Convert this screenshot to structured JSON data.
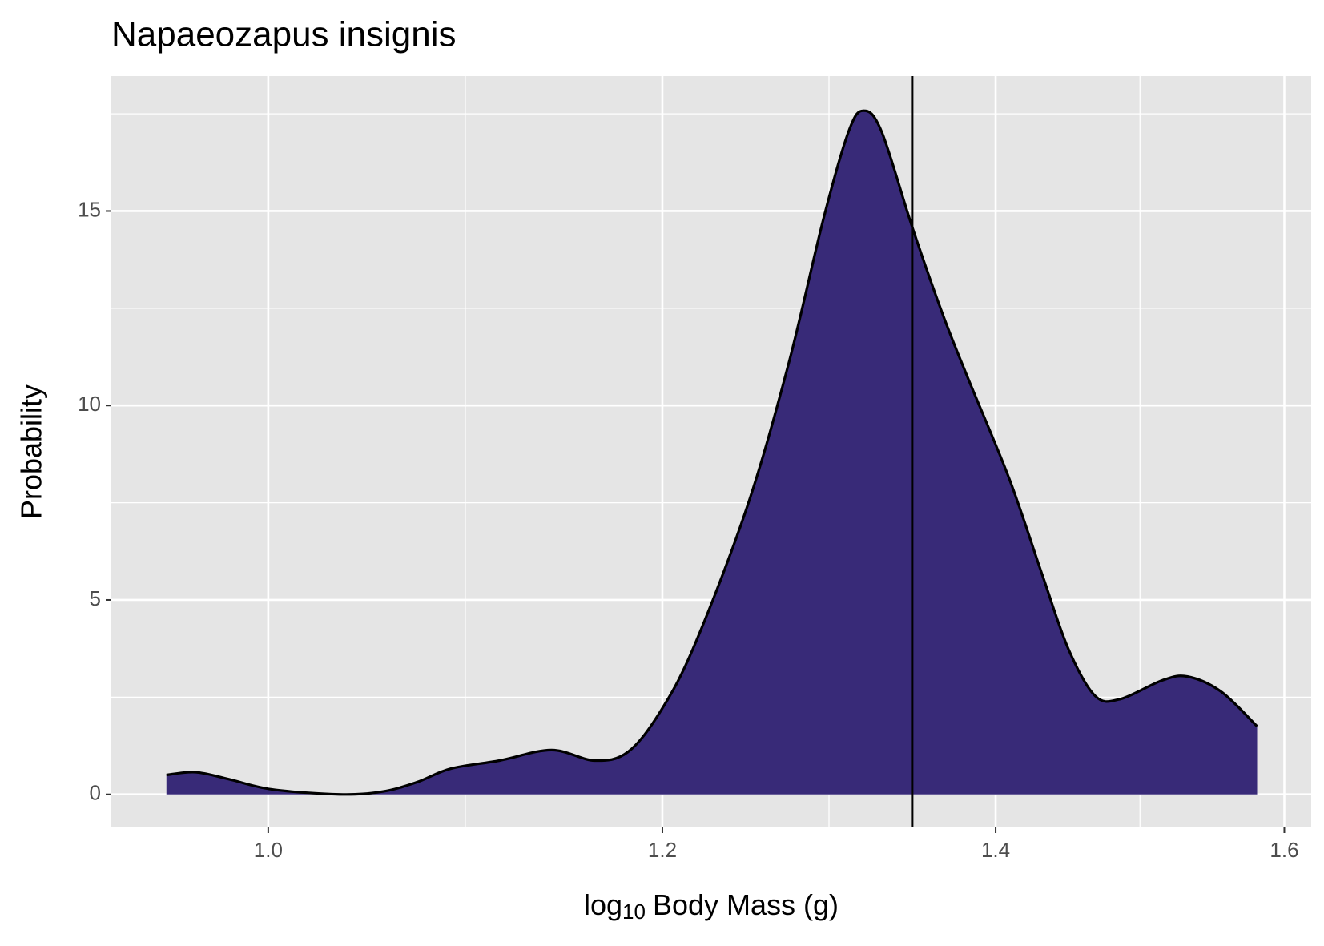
{
  "chart_data": {
    "type": "density",
    "title": "Napaeozapus insignis",
    "x_label": [
      "log",
      "10",
      "Body Mass (g)"
    ],
    "y_label": "Probability",
    "x": [
      0.954,
      0.967,
      0.982,
      1.0016,
      1.0335,
      1.054,
      1.071,
      1.088,
      1.113,
      1.14,
      1.163,
      1.181,
      1.199,
      1.218,
      1.248,
      1.272,
      1.293,
      1.308,
      1.317,
      1.328,
      1.347,
      1.366,
      1.382,
      1.409,
      1.431,
      1.448,
      1.466,
      1.483,
      1.512,
      1.53,
      1.554,
      1.58
    ],
    "values": [
      0.5,
      0.57,
      0.39,
      0.13,
      0.0,
      0.07,
      0.31,
      0.66,
      0.87,
      1.14,
      0.87,
      1.09,
      2.14,
      3.84,
      7.4,
      11.05,
      14.83,
      17.05,
      17.58,
      17.05,
      14.59,
      12.36,
      10.72,
      8.1,
      5.59,
      3.73,
      2.53,
      2.45,
      2.93,
      3.03,
      2.64,
      1.75
    ],
    "color": "#382a78",
    "line_color": "#000000",
    "reference_line": {
      "x": 1.347,
      "color": "#000000"
    },
    "xlog": true,
    "xlim": [
      0.93,
      1.62
    ],
    "ylim": [
      -0.85,
      18.47
    ],
    "xticks": [
      {
        "value": 1.0,
        "label": "1.0"
      },
      1.2,
      1.4,
      1.6
    ],
    "yticks": [
      0,
      5,
      10,
      15
    ],
    "grid": true,
    "panel_color": "#e5e5e5"
  }
}
